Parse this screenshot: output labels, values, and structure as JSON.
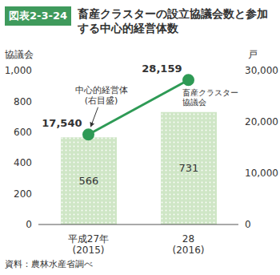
{
  "chart_data": {
    "type": "bar",
    "figure_label": "図表2-3-24",
    "title": "畜産クラスターの設立協議会数と参加する中心的経営体数",
    "source": "資料：農林水産省調べ",
    "categories": [
      "平成27年\n(2015)",
      "28\n(2016)"
    ],
    "ylabel": "協議会",
    "y2label": "戸",
    "ylim": [
      0,
      1000
    ],
    "yticks": [
      0,
      200,
      400,
      600,
      800,
      {
        "value": 1000,
        "label": "1,000"
      }
    ],
    "y2lim": [
      0,
      30000
    ],
    "y2ticks": [
      0,
      {
        "value": 10000,
        "label": "10,000"
      },
      {
        "value": 20000,
        "label": "20,000"
      },
      {
        "value": 30000,
        "label": "30,000"
      }
    ],
    "series": [
      {
        "name": "畜産クラスター\n協議会",
        "type": "bar",
        "color": "#cfe6c6",
        "values": [
          566,
          731
        ],
        "data_labels": true
      },
      {
        "name": "中心的経営体\n(右目盛)",
        "type": "line",
        "axis": "y2",
        "color": "#2e9a55",
        "marker": "circle",
        "values": [
          17540,
          28159
        ],
        "value_labels": [
          "17,540",
          "28,159"
        ],
        "data_labels": true
      }
    ]
  }
}
